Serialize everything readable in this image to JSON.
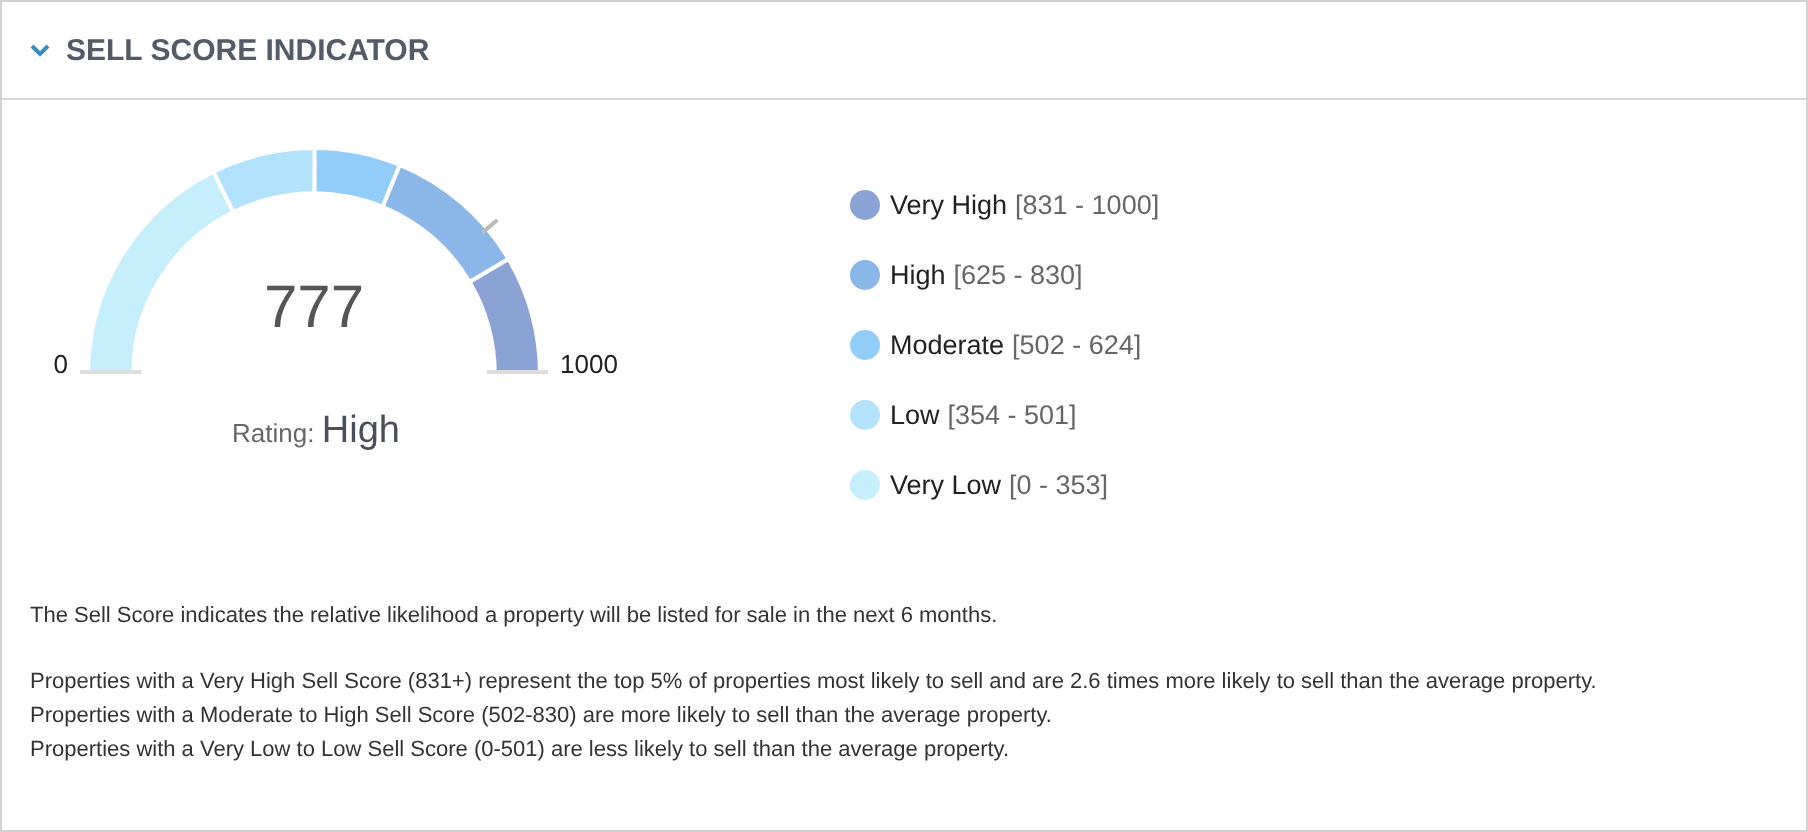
{
  "chart_data": {
    "type": "donut",
    "title": "SELL SCORE INDICATOR",
    "categories": [
      "Very High",
      "High",
      "Moderate",
      "Low",
      "Very Low"
    ],
    "values": [
      17.0,
      20.6,
      12.3,
      14.8,
      35.3
    ],
    "value_labels": [
      "[831 - 1000]",
      "[625 - 830]",
      "[502 - 624]",
      "[354 - 501]",
      "[0 - 353]"
    ],
    "colors": [
      "#8aa3d4",
      "#8ab6e8",
      "#92cdf9",
      "#b3e3fc",
      "#c6eefd"
    ],
    "legend": "right",
    "annotations": [
      "0",
      "1000",
      "777",
      "Rating:",
      "High",
      "The Sell Score indicates the relative likelihood a property will be listed for sale in the next 6 months.",
      "Properties with a Very High Sell Score (831+) represent the top 5% of properties most likely to sell and are 2.6 times more likely to sell than the average property.",
      "Properties with a Moderate to High Sell Score (502-830) are more likely to sell than the average property.",
      "Properties with a Very Low to Low Sell Score (0-501) are less likely to sell than the average property."
    ]
  }
}
